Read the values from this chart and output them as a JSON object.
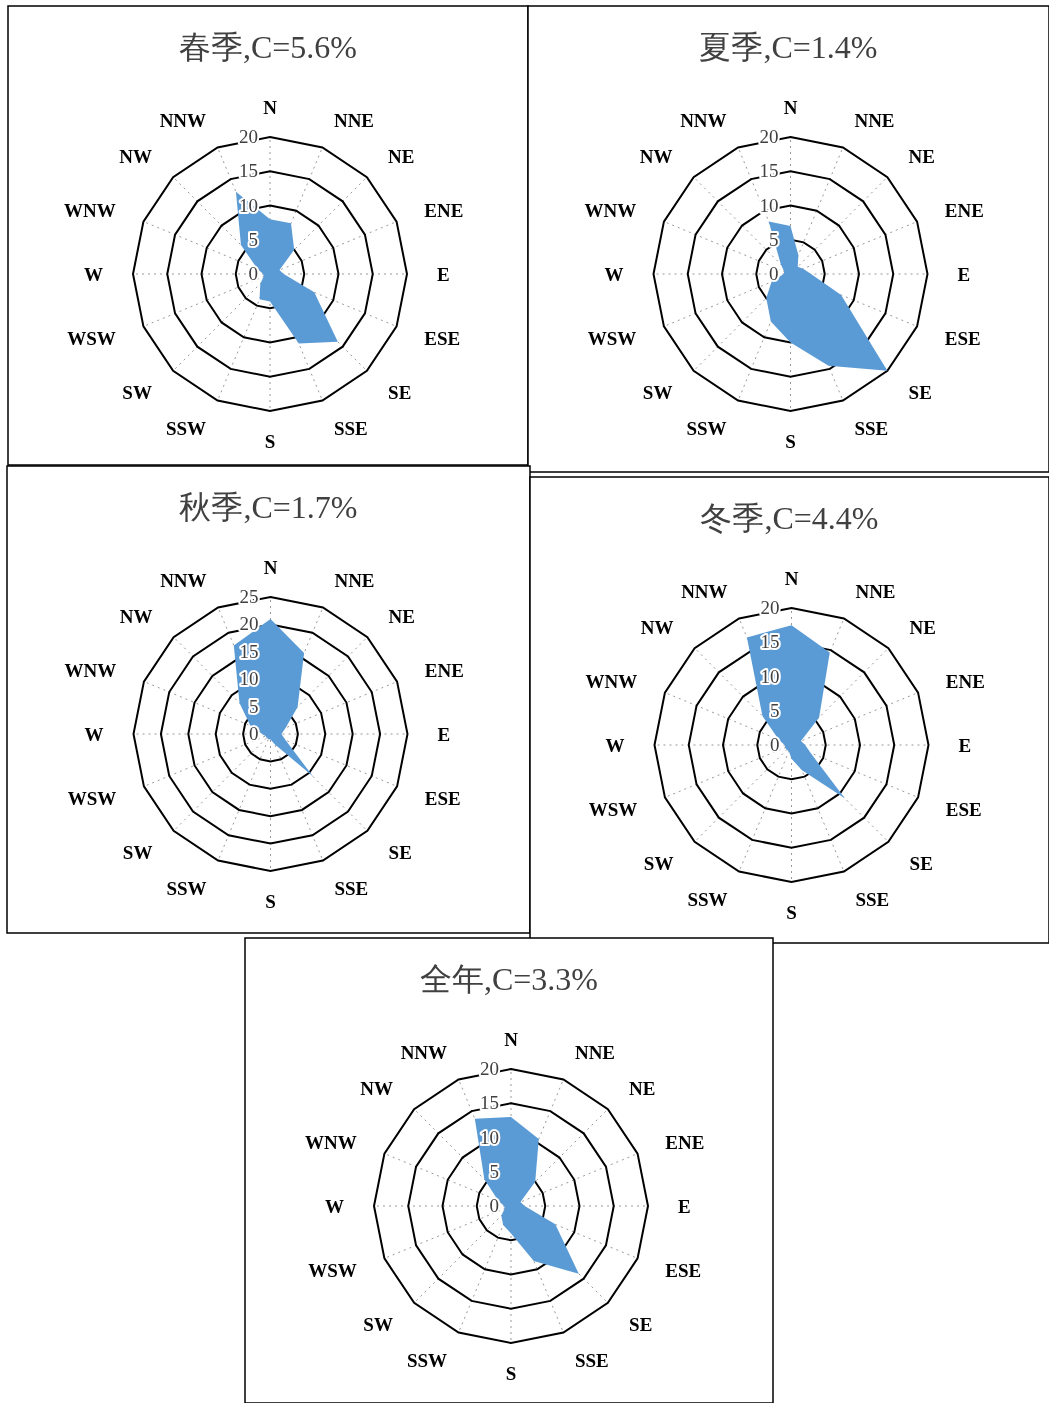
{
  "chart_data": [
    {
      "type": "radar",
      "title": "春季,C=5.6%",
      "categories": [
        "N",
        "NNE",
        "NE",
        "ENE",
        "E",
        "ESE",
        "SE",
        "SSE",
        "S",
        "SSW",
        "SW",
        "WSW",
        "W",
        "WNW",
        "NW",
        "NNW"
      ],
      "ylim": [
        0,
        20
      ],
      "yticks": [
        0,
        5,
        10,
        15,
        20
      ],
      "grid": true,
      "series": [
        {
          "color": "#5b9bd5",
          "values": [
            8,
            8,
            5,
            1.5,
            2,
            7,
            14,
            11,
            4,
            4,
            2,
            1,
            1,
            2,
            6,
            13
          ]
        }
      ]
    },
    {
      "type": "radar",
      "title": "夏季,C=1.4%",
      "categories": [
        "N",
        "NNE",
        "NE",
        "ENE",
        "E",
        "ESE",
        "SE",
        "SSE",
        "S",
        "SSW",
        "SW",
        "WSW",
        "W",
        "WNW",
        "NW",
        "NNW"
      ],
      "ylim": [
        0,
        20
      ],
      "yticks": [
        0,
        5,
        10,
        15,
        20
      ],
      "grid": true,
      "series": [
        {
          "color": "#5b9bd5",
          "values": [
            7,
            3,
            1.5,
            2,
            3,
            8,
            20,
            14.5,
            10,
            7.5,
            5,
            3,
            1,
            1,
            2,
            8.3
          ]
        }
      ]
    },
    {
      "type": "radar",
      "title": "秋季,C=1.7%",
      "categories": [
        "N",
        "NNE",
        "NE",
        "ENE",
        "E",
        "ESE",
        "SE",
        "SSE",
        "S",
        "SSW",
        "SW",
        "WSW",
        "W",
        "WNW",
        "NW",
        "NNW"
      ],
      "ylim": [
        0,
        25
      ],
      "yticks": [
        0,
        5,
        10,
        15,
        20,
        25
      ],
      "grid": true,
      "series": [
        {
          "color": "#5b9bd5",
          "values": [
            21,
            16,
            7,
            3,
            2,
            3,
            11,
            2,
            1,
            1,
            1,
            1,
            1.5,
            4,
            8,
            17.5
          ]
        }
      ]
    },
    {
      "type": "radar",
      "title": "冬季,C=4.4%",
      "categories": [
        "N",
        "NNE",
        "NE",
        "ENE",
        "E",
        "ESE",
        "SE",
        "SSE",
        "S",
        "SSW",
        "SW",
        "WSW",
        "W",
        "WNW",
        "NW",
        "NNW"
      ],
      "ylim": [
        0,
        20
      ],
      "yticks": [
        0,
        5,
        10,
        15,
        20
      ],
      "grid": true,
      "series": [
        {
          "color": "#5b9bd5",
          "values": [
            17.5,
            14.6,
            5.7,
            1.5,
            2,
            3,
            11,
            4,
            2,
            1,
            1,
            1,
            1,
            2,
            6,
            17
          ]
        }
      ]
    },
    {
      "type": "radar",
      "title": "全年,C=3.3%",
      "categories": [
        "N",
        "NNE",
        "NE",
        "ENE",
        "E",
        "ESE",
        "SE",
        "SSE",
        "S",
        "SSW",
        "SW",
        "WSW",
        "W",
        "WNW",
        "NW",
        "NNW"
      ],
      "ylim": [
        0,
        20
      ],
      "yticks": [
        0,
        5,
        10,
        15,
        20
      ],
      "grid": true,
      "series": [
        {
          "color": "#5b9bd5",
          "values": [
            13,
            10.6,
            5,
            1.5,
            2,
            7,
            14,
            8.7,
            4,
            3,
            2,
            1,
            1,
            2,
            5.5,
            13.8
          ]
        }
      ]
    }
  ]
}
